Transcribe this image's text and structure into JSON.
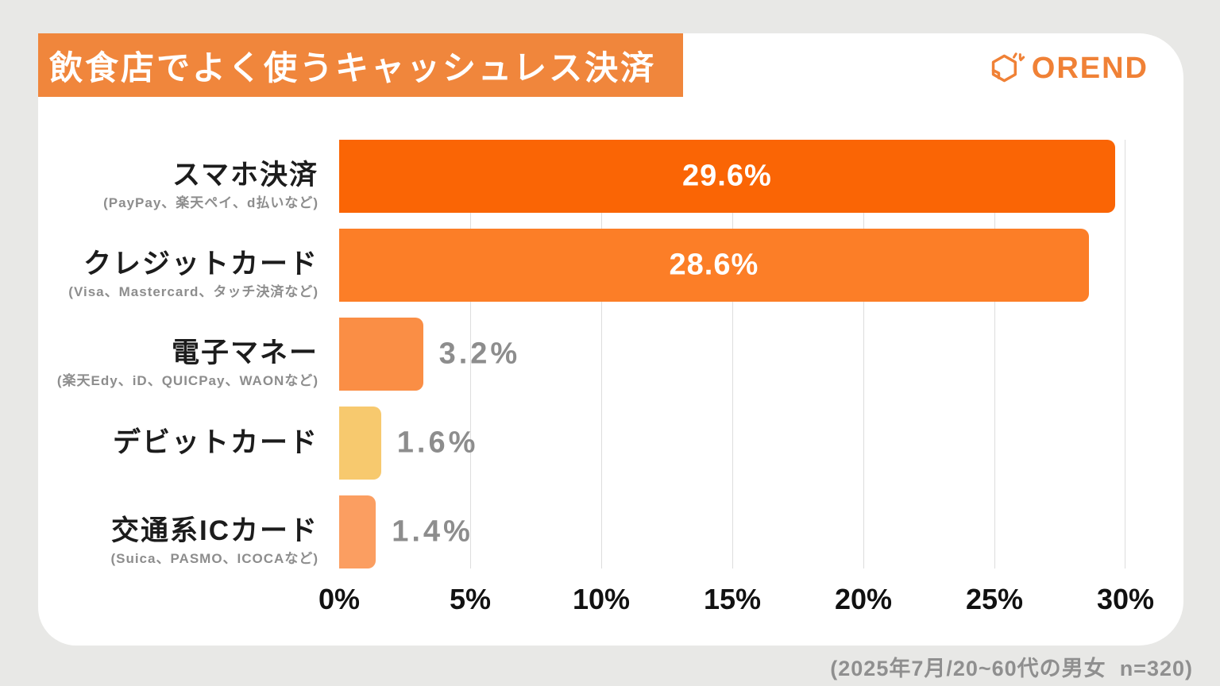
{
  "page": {
    "background_color": "#e8e8e6",
    "card_color": "#ffffff",
    "title": "飲食店でよく使うキャッシュレス決済",
    "title_banner_color": "#f0863c",
    "brand": {
      "name": "OREND",
      "color": "#f08136"
    },
    "source_note": "(2025年7月/20~60代の男女  n=320)"
  },
  "chart_data": {
    "type": "bar",
    "orientation": "horizontal",
    "title": "飲食店でよく使うキャッシュレス決済",
    "categories": [
      "スマホ決済",
      "クレジットカード",
      "電子マネー",
      "デビットカード",
      "交通系ICカード"
    ],
    "category_notes": [
      "(PayPay、楽天ペイ、d払いなど)",
      "(Visa、Mastercard、タッチ決済など)",
      "(楽天Edy、iD、QUICPay、WAONなど)",
      "",
      "(Suica、PASMO、ICOCAなど)"
    ],
    "values": [
      29.6,
      28.6,
      3.2,
      1.6,
      1.4
    ],
    "value_labels": [
      "29.6%",
      "28.6%",
      "3.2%",
      "1.6%",
      "1.4%"
    ],
    "bar_colors": [
      "#fa6505",
      "#fc7e27",
      "#fa8e45",
      "#f7c96e",
      "#fb9e61"
    ],
    "value_label_inside": [
      true,
      true,
      false,
      false,
      false
    ],
    "value_inside_color": "#ffffff",
    "value_outside_color": "#8d8d8d",
    "xlim": [
      0,
      30
    ],
    "x_ticks": [
      "0%",
      "5%",
      "10%",
      "15%",
      "20%",
      "25%",
      "30%"
    ],
    "x_tick_values": [
      0,
      5,
      10,
      15,
      20,
      25,
      30
    ],
    "gridline_color": "#dddddd",
    "grid": "vertical",
    "legend": "none"
  }
}
